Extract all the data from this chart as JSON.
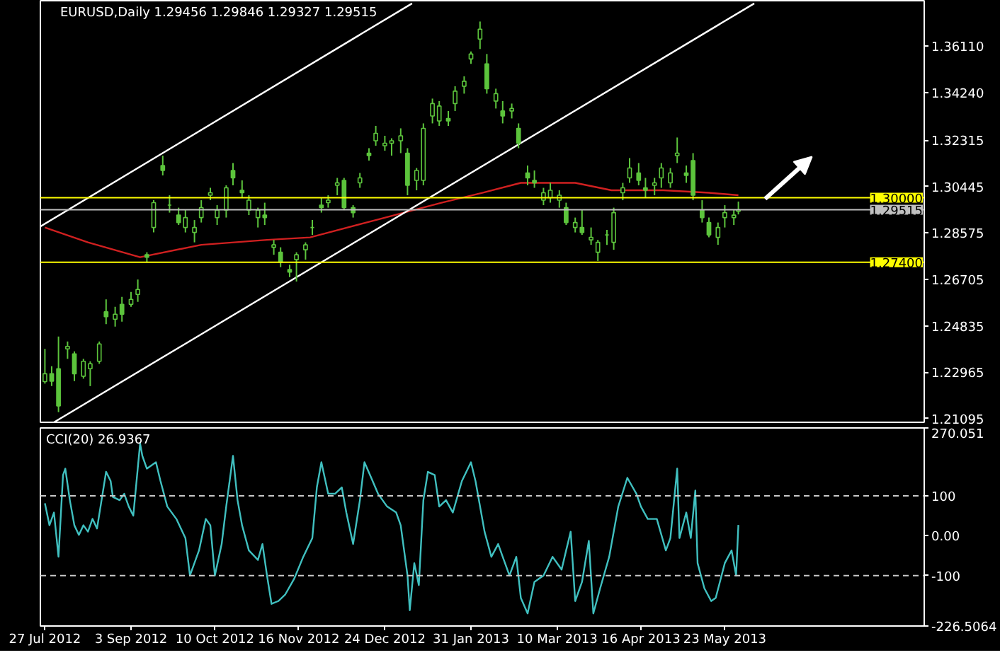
{
  "chart_data": [
    {
      "type": "candlestick",
      "title": "EURUSD,Daily  1.29456 1.29846 1.29327 1.29515",
      "color": "#5cc43c",
      "tick_labels": "y",
      "grid": false,
      "x": [
        "2012-07-27",
        "2012-07-30",
        "2012-08-02",
        "2012-08-06",
        "2012-08-09",
        "2012-08-13",
        "2012-08-16",
        "2012-08-20",
        "2012-08-23",
        "2012-08-27",
        "2012-08-30",
        "2012-09-03",
        "2012-09-06",
        "2012-09-10",
        "2012-09-13",
        "2012-09-17",
        "2012-09-20",
        "2012-09-24",
        "2012-09-27",
        "2012-10-01",
        "2012-10-04",
        "2012-10-08",
        "2012-10-11",
        "2012-10-15",
        "2012-10-18",
        "2012-10-22",
        "2012-10-25",
        "2012-10-29",
        "2012-11-01",
        "2012-11-05",
        "2012-11-08",
        "2012-11-12",
        "2012-11-15",
        "2012-11-19",
        "2012-11-22",
        "2012-11-26",
        "2012-11-29",
        "2012-12-03",
        "2012-12-06",
        "2012-12-10",
        "2012-12-13",
        "2012-12-17",
        "2012-12-20",
        "2012-12-24",
        "2012-12-27",
        "2012-12-31",
        "2013-01-03",
        "2013-01-07",
        "2013-01-10",
        "2013-01-14",
        "2013-01-17",
        "2013-01-21",
        "2013-01-24",
        "2013-01-28",
        "2013-01-31",
        "2013-02-04",
        "2013-02-07",
        "2013-02-11",
        "2013-02-14",
        "2013-02-18",
        "2013-02-21",
        "2013-02-25",
        "2013-02-28",
        "2013-03-04",
        "2013-03-07",
        "2013-03-11",
        "2013-03-14",
        "2013-03-18",
        "2013-03-21",
        "2013-03-25",
        "2013-03-28",
        "2013-04-01",
        "2013-04-04",
        "2013-04-08",
        "2013-04-11",
        "2013-04-15",
        "2013-04-18",
        "2013-04-22",
        "2013-04-25",
        "2013-04-29",
        "2013-05-02",
        "2013-05-06",
        "2013-05-09",
        "2013-05-13",
        "2013-05-16",
        "2013-05-20",
        "2013-05-23",
        "2013-05-27",
        "2013-05-29"
      ],
      "ohlc": [
        [
          1.2258,
          1.239,
          1.225,
          1.229
        ],
        [
          1.229,
          1.232,
          1.224,
          1.226
        ],
        [
          1.231,
          1.244,
          1.2135,
          1.216
        ],
        [
          1.239,
          1.242,
          1.235,
          1.24
        ],
        [
          1.237,
          1.238,
          1.226,
          1.229
        ],
        [
          1.228,
          1.235,
          1.227,
          1.234
        ],
        [
          1.231,
          1.234,
          1.224,
          1.233
        ],
        [
          1.234,
          1.242,
          1.233,
          1.241
        ],
        [
          1.254,
          1.259,
          1.249,
          1.252
        ],
        [
          1.251,
          1.256,
          1.248,
          1.253
        ],
        [
          1.257,
          1.26,
          1.25,
          1.253
        ],
        [
          1.257,
          1.262,
          1.256,
          1.259
        ],
        [
          1.261,
          1.267,
          1.258,
          1.263
        ],
        [
          1.277,
          1.278,
          1.274,
          1.276
        ],
        [
          1.288,
          1.299,
          1.286,
          1.298
        ],
        [
          1.313,
          1.317,
          1.309,
          1.311
        ],
        [
          1.297,
          1.301,
          1.294,
          1.297
        ],
        [
          1.293,
          1.296,
          1.289,
          1.29
        ],
        [
          1.288,
          1.295,
          1.286,
          1.292
        ],
        [
          1.286,
          1.291,
          1.282,
          1.288
        ],
        [
          1.292,
          1.299,
          1.29,
          1.296
        ],
        [
          1.301,
          1.304,
          1.299,
          1.302
        ],
        [
          1.292,
          1.297,
          1.289,
          1.295
        ],
        [
          1.295,
          1.305,
          1.292,
          1.304
        ],
        [
          1.311,
          1.314,
          1.305,
          1.308
        ],
        [
          1.303,
          1.307,
          1.3,
          1.302
        ],
        [
          1.295,
          1.301,
          1.293,
          1.299
        ],
        [
          1.292,
          1.296,
          1.288,
          1.295
        ],
        [
          1.293,
          1.298,
          1.289,
          1.292
        ],
        [
          1.28,
          1.283,
          1.277,
          1.281
        ],
        [
          1.278,
          1.28,
          1.272,
          1.274
        ],
        [
          1.271,
          1.273,
          1.268,
          1.27
        ],
        [
          1.275,
          1.278,
          1.2662,
          1.277
        ],
        [
          1.279,
          1.282,
          1.275,
          1.281
        ],
        [
          1.288,
          1.291,
          1.285,
          1.288
        ],
        [
          1.297,
          1.3,
          1.294,
          1.296
        ],
        [
          1.298,
          1.301,
          1.296,
          1.299
        ],
        [
          1.305,
          1.308,
          1.301,
          1.306
        ],
        [
          1.307,
          1.308,
          1.295,
          1.296
        ],
        [
          1.296,
          1.297,
          1.292,
          1.294
        ],
        [
          1.306,
          1.31,
          1.304,
          1.308
        ],
        [
          1.318,
          1.32,
          1.315,
          1.317
        ],
        [
          1.323,
          1.329,
          1.321,
          1.326
        ],
        [
          1.321,
          1.325,
          1.319,
          1.322
        ],
        [
          1.322,
          1.324,
          1.317,
          1.323
        ],
        [
          1.323,
          1.328,
          1.318,
          1.325
        ],
        [
          1.318,
          1.32,
          1.301,
          1.305
        ],
        [
          1.307,
          1.312,
          1.303,
          1.311
        ],
        [
          1.307,
          1.33,
          1.305,
          1.328
        ],
        [
          1.333,
          1.34,
          1.33,
          1.338
        ],
        [
          1.331,
          1.339,
          1.329,
          1.337
        ],
        [
          1.332,
          1.335,
          1.329,
          1.331
        ],
        [
          1.338,
          1.345,
          1.335,
          1.343
        ],
        [
          1.345,
          1.349,
          1.342,
          1.347
        ],
        [
          1.356,
          1.359,
          1.354,
          1.358
        ],
        [
          1.364,
          1.3711,
          1.36,
          1.368
        ],
        [
          1.354,
          1.358,
          1.342,
          1.344
        ],
        [
          1.339,
          1.344,
          1.336,
          1.342
        ],
        [
          1.335,
          1.339,
          1.33,
          1.333
        ],
        [
          1.335,
          1.338,
          1.332,
          1.336
        ],
        [
          1.328,
          1.33,
          1.32,
          1.322
        ],
        [
          1.31,
          1.313,
          1.305,
          1.308
        ],
        [
          1.307,
          1.311,
          1.304,
          1.306
        ],
        [
          1.299,
          1.304,
          1.297,
          1.302
        ],
        [
          1.3,
          1.306,
          1.298,
          1.303
        ],
        [
          1.299,
          1.303,
          1.296,
          1.301
        ],
        [
          1.296,
          1.298,
          1.289,
          1.29
        ],
        [
          1.288,
          1.292,
          1.286,
          1.29
        ],
        [
          1.288,
          1.295,
          1.285,
          1.286
        ],
        [
          1.283,
          1.288,
          1.281,
          1.284
        ],
        [
          1.278,
          1.283,
          1.2745,
          1.282
        ],
        [
          1.285,
          1.287,
          1.281,
          1.285
        ],
        [
          1.282,
          1.296,
          1.279,
          1.294
        ],
        [
          1.302,
          1.306,
          1.299,
          1.304
        ],
        [
          1.308,
          1.316,
          1.306,
          1.312
        ],
        [
          1.31,
          1.314,
          1.305,
          1.307
        ],
        [
          1.304,
          1.308,
          1.3,
          1.303
        ],
        [
          1.305,
          1.308,
          1.301,
          1.306
        ],
        [
          1.308,
          1.314,
          1.304,
          1.312
        ],
        [
          1.306,
          1.312,
          1.304,
          1.31
        ],
        [
          1.317,
          1.3243,
          1.314,
          1.318
        ],
        [
          1.31,
          1.313,
          1.306,
          1.309
        ],
        [
          1.315,
          1.318,
          1.299,
          1.301
        ],
        [
          1.295,
          1.299,
          1.29,
          1.292
        ],
        [
          1.29,
          1.292,
          1.284,
          1.285
        ],
        [
          1.284,
          1.29,
          1.281,
          1.288
        ],
        [
          1.292,
          1.297,
          1.288,
          1.294
        ],
        [
          1.292,
          1.295,
          1.289,
          1.293
        ],
        [
          1.29456,
          1.29846,
          1.29327,
          1.29515
        ]
      ],
      "series": [
        {
          "type": "line",
          "color": "#d02020",
          "x": [
            "2012-07-27",
            "2012-08-15",
            "2012-09-07",
            "2012-10-04",
            "2012-11-02",
            "2012-11-21",
            "2012-12-20",
            "2013-01-18",
            "2013-02-05",
            "2013-02-22",
            "2013-03-18",
            "2013-04-03",
            "2013-04-26",
            "2013-05-16",
            "2013-05-29"
          ],
          "values": [
            1.288,
            1.282,
            1.276,
            1.281,
            1.283,
            1.284,
            1.291,
            1.298,
            1.302,
            1.306,
            1.306,
            1.303,
            1.303,
            1.302,
            1.301
          ]
        },
        {
          "type": "line",
          "color": "#ffffff",
          "x": [
            "2012-07-25",
            "2013-01-05"
          ],
          "values": [
            1.2884,
            1.3784
          ]
        },
        {
          "type": "line",
          "color": "#ffffff",
          "x": [
            "2012-07-31",
            "2013-06-05"
          ],
          "values": [
            1.2094,
            1.3784
          ]
        }
      ],
      "ref_lines": [
        {
          "axis": "y",
          "value": 1.3,
          "label": "1.30000",
          "color": "#ffff00"
        },
        {
          "axis": "y",
          "value": 1.29515,
          "label": "1.29515",
          "color": "#c0c0c0"
        },
        {
          "axis": "y",
          "value": 1.274,
          "label": "1.27400",
          "color": "#ffff00"
        }
      ],
      "xlim": [
        "2012-07-25",
        "2013-08-19"
      ],
      "ylim": [
        1.2094,
        1.3795
      ],
      "yticks": [
        {
          "value": 1.3611,
          "label": "1.36110"
        },
        {
          "value": 1.3424,
          "label": "1.34240"
        },
        {
          "value": 1.32315,
          "label": "1.32315"
        },
        {
          "value": 1.30445,
          "label": "1.30445"
        },
        {
          "value": 1.28575,
          "label": "1.28575"
        },
        {
          "value": 1.26705,
          "label": "1.26705"
        },
        {
          "value": 1.24835,
          "label": "1.24835"
        },
        {
          "value": 1.22965,
          "label": "1.22965"
        },
        {
          "value": 1.21095,
          "label": "1.21095"
        }
      ]
    },
    {
      "type": "line",
      "title": "CCI(20) 26.9367",
      "grid": false,
      "series": [
        {
          "color": "#40c0c0",
          "x": [
            "2012-07-27",
            "2012-07-29",
            "2012-07-31",
            "2012-08-02",
            "2012-08-04",
            "2012-08-05",
            "2012-08-07",
            "2012-08-09",
            "2012-08-11",
            "2012-08-13",
            "2012-08-15",
            "2012-08-17",
            "2012-08-19",
            "2012-08-21",
            "2012-08-23",
            "2012-08-25",
            "2012-08-26",
            "2012-08-29",
            "2012-08-31",
            "2012-09-02",
            "2012-09-04",
            "2012-09-07",
            "2012-09-08",
            "2012-09-10",
            "2012-09-14",
            "2012-09-16",
            "2012-09-19",
            "2012-09-23",
            "2012-09-27",
            "2012-09-29",
            "2012-10-03",
            "2012-10-06",
            "2012-10-08",
            "2012-10-10",
            "2012-10-13",
            "2012-10-15",
            "2012-10-18",
            "2012-10-20",
            "2012-10-22",
            "2012-10-25",
            "2012-10-29",
            "2012-10-31",
            "2012-11-02",
            "2012-11-04",
            "2012-11-07",
            "2012-11-10",
            "2012-11-14",
            "2012-11-18",
            "2012-11-22",
            "2012-11-24",
            "2012-11-26",
            "2012-11-29",
            "2012-12-02",
            "2012-12-05",
            "2012-12-07",
            "2012-12-10",
            "2012-12-13",
            "2012-12-15",
            "2012-12-18",
            "2012-12-21",
            "2012-12-25",
            "2012-12-29",
            "2012-12-31",
            "2013-01-03",
            "2013-01-04",
            "2013-01-06",
            "2013-01-08",
            "2013-01-10",
            "2013-01-12",
            "2013-01-15",
            "2013-01-17",
            "2013-01-20",
            "2013-01-23",
            "2013-01-27",
            "2013-01-31",
            "2013-02-02",
            "2013-02-06",
            "2013-02-09",
            "2013-02-12",
            "2013-02-14",
            "2013-02-17",
            "2013-02-20",
            "2013-02-22",
            "2013-02-25",
            "2013-02-28",
            "2013-03-04",
            "2013-03-08",
            "2013-03-12",
            "2013-03-14",
            "2013-03-16",
            "2013-03-18",
            "2013-03-21",
            "2013-03-24",
            "2013-03-26",
            "2013-03-29",
            "2013-04-02",
            "2013-04-06",
            "2013-04-10",
            "2013-04-14",
            "2013-04-16",
            "2013-04-19",
            "2013-04-23",
            "2013-04-27",
            "2013-04-29",
            "2013-05-02",
            "2013-05-03",
            "2013-05-06",
            "2013-05-08",
            "2013-05-10",
            "2013-05-11",
            "2013-05-14",
            "2013-05-17",
            "2013-05-19",
            "2013-05-23",
            "2013-05-26",
            "2013-05-28",
            "2013-05-29"
          ],
          "values": [
            81,
            26,
            58,
            -53,
            152,
            168,
            89,
            26,
            2,
            26,
            10,
            42,
            18,
            89,
            160,
            137,
            97,
            89,
            105,
            73,
            50,
            231,
            200,
            168,
            184,
            137,
            73,
            42,
            -6,
            -100,
            -37,
            42,
            26,
            -100,
            -21,
            73,
            200,
            89,
            26,
            -37,
            -61,
            -21,
            -100,
            -171,
            -164,
            -148,
            -108,
            -53,
            -6,
            121,
            184,
            105,
            105,
            121,
            58,
            -21,
            89,
            184,
            145,
            105,
            73,
            58,
            26,
            -100,
            -187,
            -69,
            -124,
            89,
            160,
            152,
            73,
            89,
            58,
            137,
            184,
            137,
            10,
            -53,
            -21,
            -53,
            -100,
            -53,
            -156,
            -195,
            -116,
            -100,
            -53,
            -85,
            -37,
            10,
            -164,
            -116,
            -13,
            -195,
            -132,
            -53,
            73,
            145,
            105,
            73,
            42,
            42,
            -37,
            -6,
            168,
            -6,
            58,
            -6,
            113,
            -69,
            -132,
            -164,
            -156,
            -69,
            -37,
            -100,
            26.9367
          ]
        }
      ],
      "ref_lines": [
        {
          "axis": "y",
          "value": 100,
          "color": "#c8c8c8",
          "line_style": "dashed"
        },
        {
          "axis": "y",
          "value": -100,
          "color": "#c8c8c8",
          "line_style": "dashed"
        }
      ],
      "xlim": [
        "2012-07-25",
        "2013-08-19"
      ],
      "ylim": [
        -226.5064,
        270.051
      ],
      "xticks": [
        {
          "value": "2012-07-27",
          "label": "27 Jul 2012"
        },
        {
          "value": "2012-09-03",
          "label": "3 Sep 2012"
        },
        {
          "value": "2012-10-10",
          "label": "10 Oct 2012"
        },
        {
          "value": "2012-11-16",
          "label": "16 Nov 2012"
        },
        {
          "value": "2012-12-24",
          "label": "24 Dec 2012"
        },
        {
          "value": "2013-01-31",
          "label": "31 Jan 2013"
        },
        {
          "value": "2013-03-10",
          "label": "10 Mar 2013"
        },
        {
          "value": "2013-04-16",
          "label": "16 Apr 2013"
        },
        {
          "value": "2013-05-23",
          "label": "23 May 2013"
        }
      ],
      "yticks": [
        {
          "value": 270.051,
          "label": "270.051"
        },
        100,
        {
          "value": 0,
          "label": "0.00"
        },
        -100,
        {
          "value": -226.5064,
          "label": "-226.5064"
        }
      ]
    }
  ]
}
